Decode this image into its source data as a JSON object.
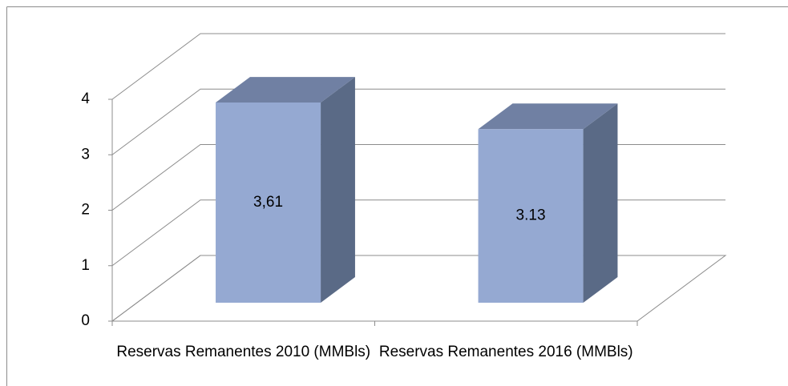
{
  "chart_data": {
    "type": "bar3d",
    "categories": [
      "Reservas Remanentes 2010 (MMBls)",
      "Reservas Remanentes 2016 (MMBls)"
    ],
    "values": [
      3.61,
      3.13
    ],
    "value_labels": [
      "3,61",
      "3.13"
    ],
    "color": "#95a9d2",
    "ylim": [
      0,
      4
    ],
    "yticks": [
      0,
      1,
      2,
      3,
      4
    ],
    "grid": true
  }
}
